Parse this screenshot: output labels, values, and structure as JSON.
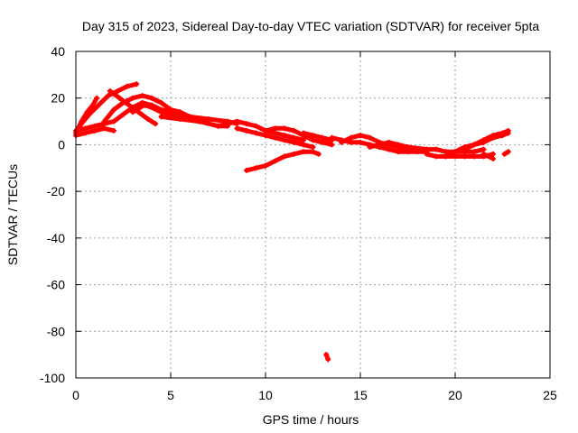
{
  "chart_data": {
    "type": "scatter",
    "title": "Day 315 of 2023, Sidereal Day-to-day VTEC variation (SDTVAR) for receiver 5pta",
    "xlabel": "GPS time / hours",
    "ylabel": "SDTVAR / TECUs",
    "xlim": [
      0,
      25
    ],
    "ylim": [
      -100,
      40
    ],
    "xticks": [
      0,
      5,
      10,
      15,
      20,
      25
    ],
    "yticks": [
      -100,
      -80,
      -60,
      -40,
      -20,
      0,
      20,
      40
    ],
    "grid": true,
    "series_color": "#ff0000",
    "tracks": [
      [
        [
          0.0,
          6
        ],
        [
          0.5,
          7
        ],
        [
          1.0,
          8
        ],
        [
          1.5,
          9
        ],
        [
          2.0,
          10
        ],
        [
          2.5,
          13
        ],
        [
          3.0,
          16
        ],
        [
          3.5,
          18
        ],
        [
          4.0,
          17
        ],
        [
          4.5,
          15
        ],
        [
          5.0,
          14
        ],
        [
          5.5,
          13
        ]
      ],
      [
        [
          0.0,
          4
        ],
        [
          0.5,
          5
        ],
        [
          1.0,
          6
        ],
        [
          1.5,
          7
        ],
        [
          2.0,
          6
        ]
      ],
      [
        [
          0.0,
          5
        ],
        [
          0.3,
          10
        ],
        [
          0.6,
          14
        ],
        [
          0.9,
          17
        ],
        [
          1.1,
          20
        ]
      ],
      [
        [
          0.2,
          8
        ],
        [
          0.7,
          13
        ],
        [
          1.2,
          17
        ],
        [
          1.7,
          21
        ],
        [
          2.2,
          23
        ],
        [
          2.7,
          25
        ],
        [
          3.2,
          26
        ]
      ],
      [
        [
          1.5,
          10
        ],
        [
          2.0,
          15
        ],
        [
          2.5,
          18
        ],
        [
          3.0,
          20
        ],
        [
          3.5,
          21
        ],
        [
          4.0,
          20
        ],
        [
          4.5,
          18
        ],
        [
          5.0,
          15
        ],
        [
          5.5,
          14
        ],
        [
          6.0,
          12
        ]
      ],
      [
        [
          1.8,
          23
        ],
        [
          2.3,
          20
        ],
        [
          2.8,
          17
        ],
        [
          3.3,
          14
        ],
        [
          3.8,
          11
        ],
        [
          4.2,
          9
        ]
      ],
      [
        [
          3.0,
          14
        ],
        [
          3.6,
          17
        ],
        [
          4.0,
          16
        ],
        [
          4.5,
          14
        ],
        [
          5.0,
          13
        ],
        [
          6.0,
          12
        ],
        [
          7.0,
          11
        ],
        [
          8.0,
          10
        ],
        [
          8.5,
          9
        ]
      ],
      [
        [
          4.5,
          12
        ],
        [
          5.5,
          11
        ],
        [
          6.5,
          10
        ],
        [
          7.5,
          8
        ],
        [
          8.0,
          8
        ]
      ],
      [
        [
          7.5,
          8
        ],
        [
          8.0,
          9
        ],
        [
          8.5,
          10
        ],
        [
          9.0,
          9
        ],
        [
          9.5,
          8
        ],
        [
          10.0,
          6
        ],
        [
          10.5,
          5
        ],
        [
          11.0,
          4
        ],
        [
          11.5,
          3
        ],
        [
          12.0,
          2
        ]
      ],
      [
        [
          8.5,
          7
        ],
        [
          9.0,
          6
        ],
        [
          9.5,
          5
        ],
        [
          10.0,
          4
        ],
        [
          10.5,
          3
        ],
        [
          11.0,
          2
        ],
        [
          11.5,
          1
        ],
        [
          12.0,
          0
        ],
        [
          12.5,
          -1
        ]
      ],
      [
        [
          10.0,
          6
        ],
        [
          10.5,
          7
        ],
        [
          11.0,
          7
        ],
        [
          11.5,
          6
        ],
        [
          12.0,
          4
        ],
        [
          12.5,
          2
        ],
        [
          13.0,
          1
        ],
        [
          13.5,
          0
        ]
      ],
      [
        [
          12.0,
          5
        ],
        [
          12.5,
          4
        ],
        [
          13.0,
          3
        ],
        [
          13.5,
          2
        ]
      ],
      [
        [
          9.0,
          -11
        ],
        [
          9.5,
          -10
        ],
        [
          10.0,
          -9
        ],
        [
          10.5,
          -7
        ],
        [
          11.0,
          -5
        ],
        [
          11.5,
          -4
        ],
        [
          12.0,
          -3
        ],
        [
          12.5,
          -3
        ],
        [
          12.8,
          -4
        ]
      ],
      [
        [
          13.5,
          3
        ],
        [
          14.0,
          2
        ],
        [
          14.5,
          1
        ],
        [
          15.0,
          1
        ],
        [
          15.5,
          0
        ],
        [
          16.0,
          -1
        ],
        [
          16.5,
          -2
        ],
        [
          17.0,
          -3
        ],
        [
          17.5,
          -3
        ],
        [
          18.0,
          -3
        ],
        [
          18.5,
          -3
        ]
      ],
      [
        [
          14.0,
          1
        ],
        [
          14.5,
          3
        ],
        [
          15.0,
          4
        ],
        [
          15.5,
          3
        ],
        [
          16.0,
          1
        ],
        [
          16.5,
          0
        ],
        [
          17.0,
          -1
        ],
        [
          17.5,
          -2
        ],
        [
          18.0,
          -2
        ]
      ],
      [
        [
          15.5,
          -1
        ],
        [
          16.0,
          0
        ],
        [
          16.5,
          1
        ],
        [
          17.0,
          0
        ],
        [
          17.5,
          -1
        ],
        [
          18.5,
          -2
        ],
        [
          19.0,
          -2
        ],
        [
          19.5,
          -3
        ],
        [
          20.0,
          -3
        ],
        [
          20.5,
          -3
        ],
        [
          21.0,
          -3
        ],
        [
          21.5,
          -2
        ]
      ],
      [
        [
          18.5,
          -4
        ],
        [
          19.0,
          -5
        ],
        [
          19.5,
          -5
        ],
        [
          20.0,
          -5
        ],
        [
          20.5,
          -5
        ],
        [
          21.0,
          -5
        ],
        [
          21.5,
          -5
        ],
        [
          22.0,
          -4
        ]
      ],
      [
        [
          19.5,
          -5
        ],
        [
          20.0,
          -3
        ],
        [
          20.5,
          -1
        ],
        [
          21.0,
          0
        ],
        [
          21.5,
          1
        ],
        [
          22.0,
          3
        ],
        [
          22.5,
          4
        ],
        [
          22.8,
          5
        ]
      ],
      [
        [
          20.5,
          -2
        ],
        [
          21.0,
          0
        ],
        [
          21.5,
          2
        ],
        [
          22.0,
          4
        ],
        [
          22.5,
          5
        ],
        [
          22.8,
          6
        ]
      ],
      [
        [
          21.5,
          -4
        ],
        [
          22.0,
          -6
        ]
      ],
      [
        [
          22.6,
          -4
        ],
        [
          22.8,
          -3
        ]
      ],
      [
        [
          13.2,
          -90
        ],
        [
          13.3,
          -92
        ]
      ]
    ]
  }
}
